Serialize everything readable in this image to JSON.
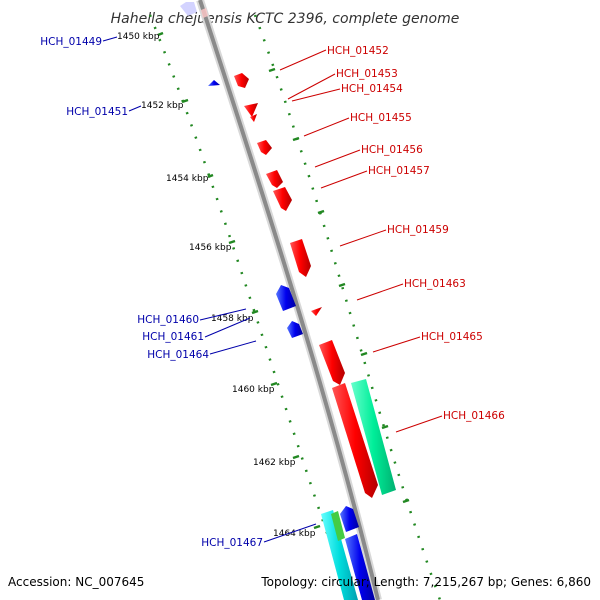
{
  "title": "Hahella chejuensis KCTC 2396, complete genome",
  "footer": {
    "accession": "Accession: NC_007645",
    "topology": "Topology: circular; Length: 7,215,267 bp; Genes: 6,860"
  },
  "colors": {
    "backbone": "#8a8a8a",
    "forward_label": "#cc0000",
    "reverse_label": "#0000aa",
    "forward_gene": "#ff0000",
    "reverse_gene": "#0000ff",
    "rna": "#00ee99",
    "ticks": "#228822"
  },
  "scale_labels": [
    "1450 kbp",
    "1452 kbp",
    "1454 kbp",
    "1456 kbp",
    "1458 kbp",
    "1460 kbp",
    "1462 kbp",
    "1464 kbp"
  ],
  "forward_labels": [
    "HCH_01452",
    "HCH_01453",
    "HCH_01454",
    "HCH_01455",
    "HCH_01456",
    "HCH_01457",
    "HCH_01459",
    "HCH_01463",
    "HCH_01465",
    "HCH_01466"
  ],
  "reverse_labels": [
    "HCH_01449",
    "HCH_01451",
    "HCH_01460",
    "HCH_01461",
    "HCH_01464",
    "HCH_01467"
  ]
}
